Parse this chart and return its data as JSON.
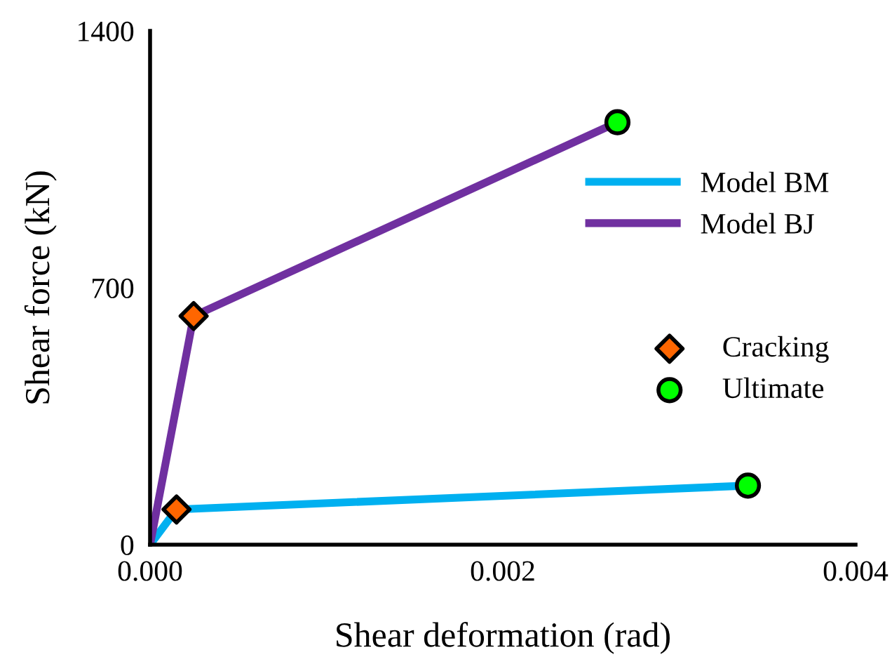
{
  "chart_data": {
    "type": "line",
    "xlabel": "Shear deformation (rad)",
    "ylabel": "Shear force (kN)",
    "series": [
      {
        "name": "Model BM",
        "color": "#00b0f0",
        "x": [
          0,
          0.00015,
          0.00339
        ],
        "values": [
          0,
          96,
          161
        ]
      },
      {
        "name": "Model BJ",
        "color": "#7030a0",
        "x": [
          0,
          0.000247,
          0.00265
        ],
        "values": [
          0,
          623,
          1151
        ]
      },
      {
        "name": "Cracking",
        "color": "#ff6600",
        "type": "scatter",
        "marker": "diamond",
        "x": [
          0.00015,
          0.000247
        ],
        "values": [
          96,
          623
        ]
      },
      {
        "name": "Ultimate",
        "color": "#00ff00",
        "type": "scatter",
        "marker": "circle",
        "x": [
          0.00339,
          0.00265
        ],
        "values": [
          161,
          1151
        ]
      }
    ],
    "xlim": [
      0,
      0.004
    ],
    "xticks": [
      {
        "value": 0,
        "label": "0.000"
      },
      {
        "value": 0.002,
        "label": "0.002"
      },
      {
        "value": 0.004,
        "label": "0.004"
      }
    ],
    "ylim": [
      0,
      1400
    ],
    "yticks": [
      0,
      700,
      1400
    ],
    "grid": false,
    "legend": "right"
  }
}
